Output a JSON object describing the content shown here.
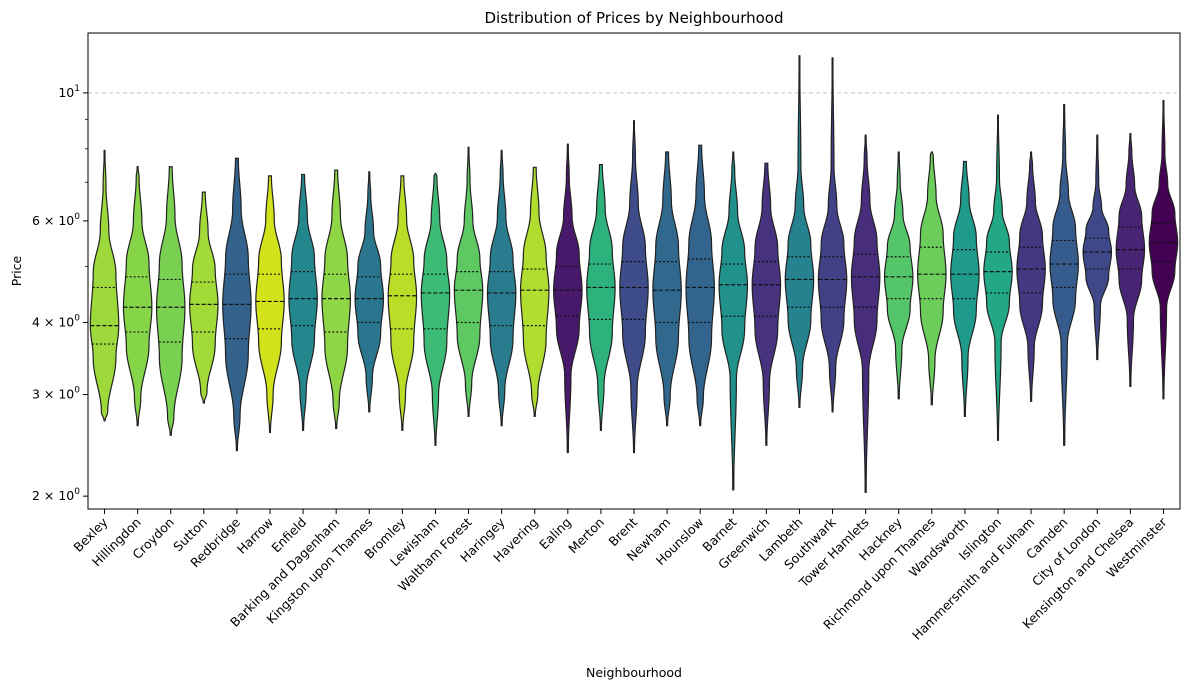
{
  "chart_data": {
    "type": "violin",
    "title": "Distribution of Prices by Neighbourhood",
    "xlabel": "Neighbourhood",
    "ylabel": "Price",
    "yscale": "log",
    "ylim": [
      1.9,
      12.7
    ],
    "y_ticks": [
      {
        "value": 2,
        "base": "2 × 10",
        "exp": "0"
      },
      {
        "value": 3,
        "base": "3 × 10",
        "exp": "0"
      },
      {
        "value": 4,
        "base": "4 × 10",
        "exp": "0"
      },
      {
        "value": 6,
        "base": "6 × 10",
        "exp": "0"
      },
      {
        "value": 10,
        "base": "10",
        "exp": "1"
      }
    ],
    "y_minor_ticks": [
      5,
      7,
      8,
      9
    ],
    "grid": "horizontal dashed line at 10^1",
    "inner": "quartiles",
    "categories": [
      "Bexley",
      "Hillingdon",
      "Croydon",
      "Sutton",
      "Redbridge",
      "Harrow",
      "Enfield",
      "Barking and Dagenham",
      "Kingston upon Thames",
      "Bromley",
      "Lewisham",
      "Waltham Forest",
      "Haringey",
      "Havering",
      "Ealing",
      "Merton",
      "Brent",
      "Newham",
      "Hounslow",
      "Barnet",
      "Greenwich",
      "Lambeth",
      "Southwark",
      "Tower Hamlets",
      "Hackney",
      "Richmond upon Thames",
      "Wandsworth",
      "Islington",
      "Hammersmith and Fulham",
      "Camden",
      "City of London",
      "Kensington and Chelsea",
      "Westminster"
    ],
    "series": [
      {
        "min": 2.7,
        "q1": 3.67,
        "median": 3.95,
        "q3": 4.6,
        "max": 7.95,
        "color": "#9dd93b"
      },
      {
        "min": 2.65,
        "q1": 3.85,
        "median": 4.25,
        "q3": 4.8,
        "max": 7.45,
        "color": "#86d549"
      },
      {
        "min": 2.55,
        "q1": 3.7,
        "median": 4.25,
        "q3": 4.75,
        "max": 7.25,
        "color": "#7ad151"
      },
      {
        "min": 2.9,
        "q1": 3.85,
        "median": 4.3,
        "q3": 4.7,
        "max": 6.65,
        "color": "#a2da37"
      },
      {
        "min": 2.4,
        "q1": 3.75,
        "median": 4.3,
        "q3": 4.85,
        "max": 6.7,
        "color": "#33628d"
      },
      {
        "min": 2.58,
        "q1": 3.9,
        "median": 4.35,
        "q3": 4.85,
        "max": 6.6,
        "color": "#d2e21b"
      },
      {
        "min": 2.6,
        "q1": 3.95,
        "median": 4.4,
        "q3": 4.9,
        "max": 6.5,
        "color": "#24878e"
      },
      {
        "min": 2.62,
        "q1": 3.85,
        "median": 4.4,
        "q3": 4.85,
        "max": 7.25,
        "color": "#8ed645"
      },
      {
        "min": 2.8,
        "q1": 4.0,
        "median": 4.4,
        "q3": 4.8,
        "max": 7.3,
        "color": "#2a768e"
      },
      {
        "min": 2.6,
        "q1": 3.9,
        "median": 4.45,
        "q3": 4.85,
        "max": 6.85,
        "color": "#bade28"
      },
      {
        "min": 2.45,
        "q1": 3.9,
        "median": 4.5,
        "q3": 4.85,
        "max": 7.25,
        "color": "#3bbb75"
      },
      {
        "min": 2.75,
        "q1": 4.0,
        "median": 4.55,
        "q3": 4.9,
        "max": 8.05,
        "color": "#5ec962"
      },
      {
        "min": 2.65,
        "q1": 3.95,
        "median": 4.5,
        "q3": 4.9,
        "max": 7.95,
        "color": "#297b8e"
      },
      {
        "min": 2.75,
        "q1": 3.95,
        "median": 4.55,
        "q3": 4.95,
        "max": 6.9,
        "color": "#b0dd2f"
      },
      {
        "min": 2.38,
        "q1": 4.1,
        "median": 4.55,
        "q3": 5.0,
        "max": 8.15,
        "color": "#48186a"
      },
      {
        "min": 2.6,
        "q1": 4.05,
        "median": 4.6,
        "q3": 5.05,
        "max": 7.25,
        "color": "#2db27d"
      },
      {
        "min": 2.38,
        "q1": 4.05,
        "median": 4.6,
        "q3": 5.1,
        "max": 8.95,
        "color": "#3e4c8a"
      },
      {
        "min": 2.65,
        "q1": 4.0,
        "median": 4.55,
        "q3": 5.1,
        "max": 6.95,
        "color": "#31688e"
      },
      {
        "min": 2.65,
        "q1": 4.0,
        "median": 4.6,
        "q3": 5.15,
        "max": 7.3,
        "color": "#32648e"
      },
      {
        "min": 2.05,
        "q1": 4.1,
        "median": 4.65,
        "q3": 5.05,
        "max": 7.9,
        "color": "#21918c"
      },
      {
        "min": 2.45,
        "q1": 4.1,
        "median": 4.65,
        "q3": 5.1,
        "max": 7.35,
        "color": "#46327e"
      },
      {
        "min": 2.85,
        "q1": 4.25,
        "median": 4.75,
        "q3": 5.2,
        "max": 11.6,
        "color": "#26828e"
      },
      {
        "min": 2.8,
        "q1": 4.25,
        "median": 4.75,
        "q3": 5.2,
        "max": 11.5,
        "color": "#424086"
      },
      {
        "min": 2.03,
        "q1": 4.25,
        "median": 4.8,
        "q3": 5.25,
        "max": 8.45,
        "color": "#472d7b"
      },
      {
        "min": 2.95,
        "q1": 4.4,
        "median": 4.8,
        "q3": 5.2,
        "max": 7.9,
        "color": "#54c568"
      },
      {
        "min": 2.88,
        "q1": 4.4,
        "median": 4.85,
        "q3": 5.4,
        "max": 7.9,
        "color": "#6ccd5a"
      },
      {
        "min": 2.75,
        "q1": 4.4,
        "median": 4.85,
        "q3": 5.35,
        "max": 7.6,
        "color": "#1e9b8a"
      },
      {
        "min": 2.5,
        "q1": 4.5,
        "median": 4.9,
        "q3": 5.3,
        "max": 9.15,
        "color": "#22a884"
      },
      {
        "min": 2.92,
        "q1": 4.5,
        "median": 4.95,
        "q3": 5.4,
        "max": 7.9,
        "color": "#453781"
      },
      {
        "min": 2.45,
        "q1": 4.6,
        "median": 5.05,
        "q3": 5.55,
        "max": 9.55,
        "color": "#365c8d"
      },
      {
        "min": 3.45,
        "q1": 4.95,
        "median": 5.3,
        "q3": 5.6,
        "max": 8.45,
        "color": "#3f4889"
      },
      {
        "min": 3.1,
        "q1": 4.95,
        "median": 5.35,
        "q3": 5.85,
        "max": 8.5,
        "color": "#482475"
      },
      {
        "min": 2.95,
        "q1": 5.1,
        "median": 5.5,
        "q3": 5.95,
        "max": 9.7,
        "color": "#440154"
      }
    ]
  }
}
